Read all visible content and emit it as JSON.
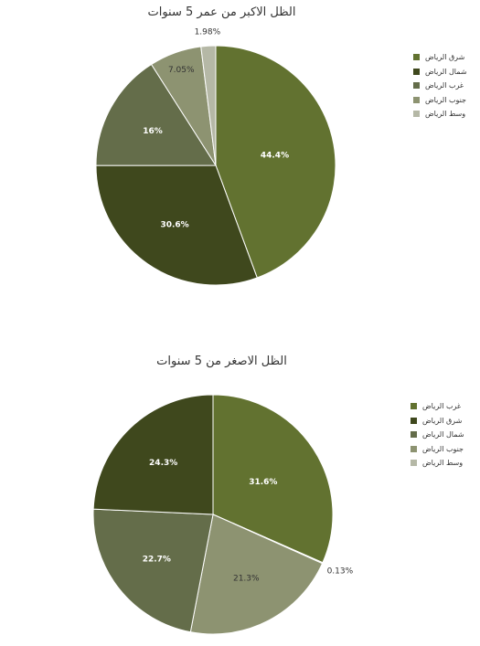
{
  "chart_data": [
    {
      "type": "pie",
      "title": "الظل الاكبر من عمر 5 سنوات",
      "categories": [
        "شرق الرياض",
        "شمال الرياض",
        "غرب الرياض",
        "جنوب الرياض",
        "وسط الرياض"
      ],
      "values": [
        44.4,
        30.6,
        16,
        7.05,
        1.98
      ],
      "value_labels": [
        "44.4%",
        "30.6%",
        "16%",
        "7.05%",
        "1.98%"
      ],
      "colors": [
        "#627230",
        "#3f481d",
        "#646d4a",
        "#8d9371",
        "#b5b8a6"
      ],
      "legend_position": "right"
    },
    {
      "type": "pie",
      "title": "الظل الاصغر من 5 سنوات",
      "categories": [
        "غرب الرياض",
        "شرق الرياض",
        "شمال الرياض",
        "جنوب الرياض",
        "وسط الرياض"
      ],
      "values": [
        31.6,
        24.3,
        22.7,
        21.3,
        0.13
      ],
      "value_labels": [
        "31.6%",
        "24.3%",
        "22.7%",
        "21.3%",
        "0.13%"
      ],
      "slice_order": [
        0,
        3,
        2,
        1,
        4
      ],
      "drawn_values": [
        31.6,
        0.13,
        21.3,
        22.7,
        24.3
      ],
      "drawn_labels": [
        "31.6%",
        "0.13%",
        "21.3%",
        "22.7%",
        "24.3%"
      ],
      "drawn_colors": [
        "#627230",
        "#b5b8a6",
        "#8d9371",
        "#646d4a",
        "#3f481d"
      ],
      "colors": [
        "#627230",
        "#3f481d",
        "#646d4a",
        "#8d9371",
        "#b5b8a6"
      ],
      "legend_position": "right"
    }
  ]
}
